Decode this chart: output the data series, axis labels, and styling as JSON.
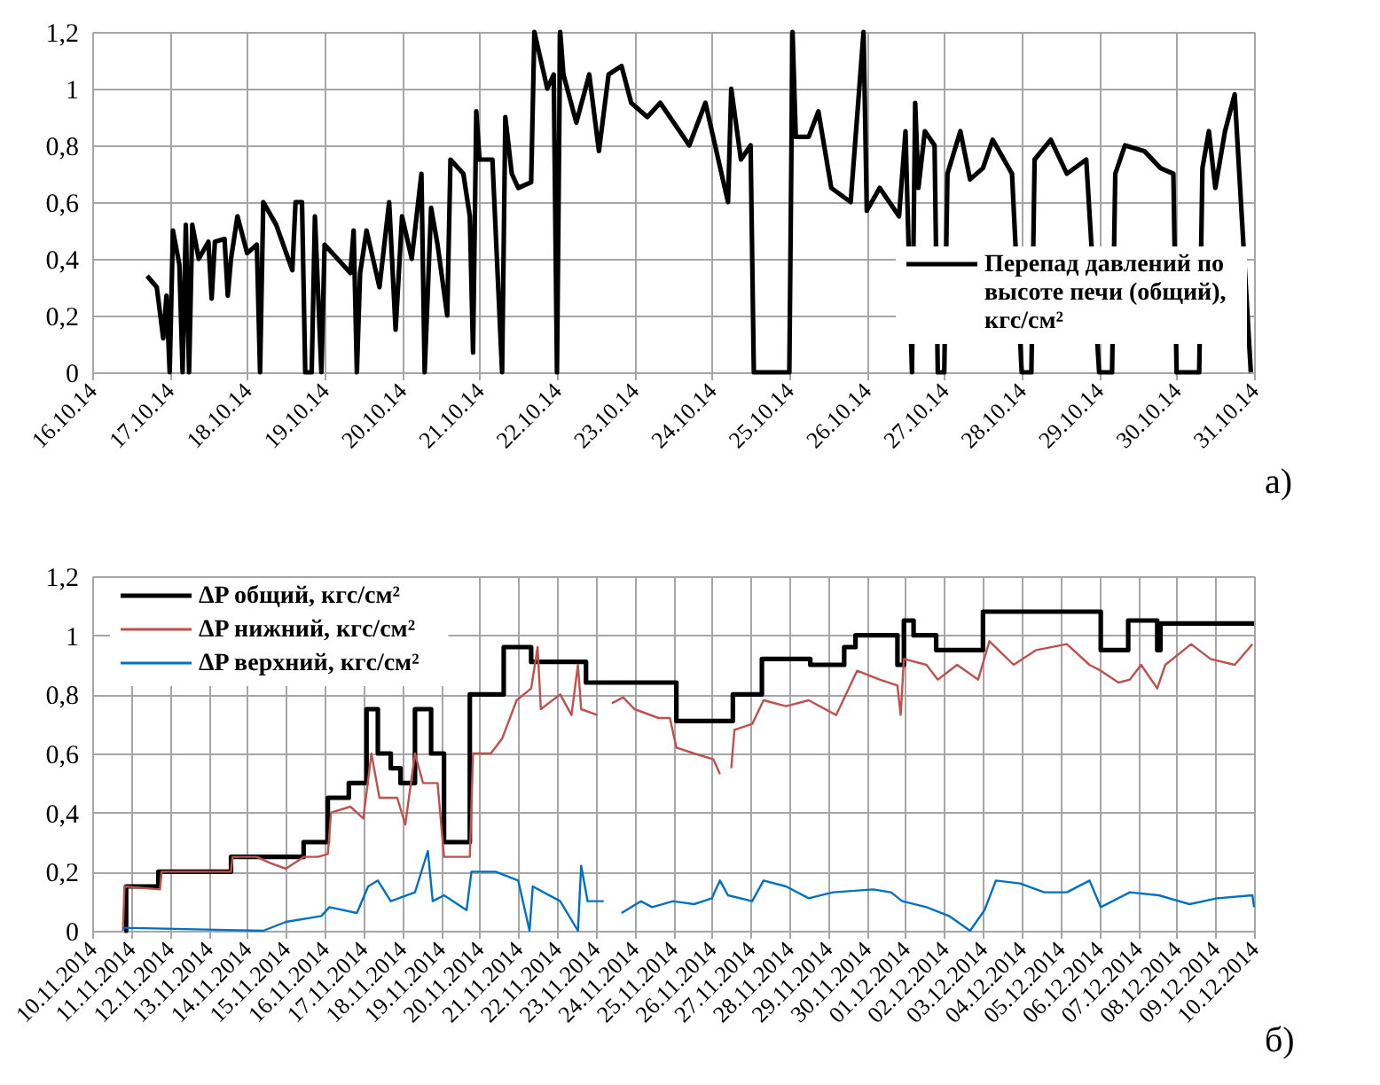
{
  "chart_data": [
    {
      "type": "line",
      "annotations": [
        "а)"
      ],
      "legend": "bottom right",
      "grid": true,
      "xlim": [
        "2014-10-16",
        "2014-10-31"
      ],
      "xticks": [
        {
          "value": "2014-10-16",
          "label": "16.10.14"
        },
        {
          "value": "2014-10-17",
          "label": "17.10.14"
        },
        {
          "value": "2014-10-18",
          "label": "18.10.14"
        },
        {
          "value": "2014-10-19",
          "label": "19.10.14"
        },
        {
          "value": "2014-10-20",
          "label": "20.10.14"
        },
        {
          "value": "2014-10-21",
          "label": "21.10.14"
        },
        {
          "value": "2014-10-22",
          "label": "22.10.14"
        },
        {
          "value": "2014-10-23",
          "label": "23.10.14"
        },
        {
          "value": "2014-10-24",
          "label": "24.10.14"
        },
        {
          "value": "2014-10-25",
          "label": "25.10.14"
        },
        {
          "value": "2014-10-26",
          "label": "26.10.14"
        },
        {
          "value": "2014-10-27",
          "label": "27.10.14"
        },
        {
          "value": "2014-10-28",
          "label": "28.10.14"
        },
        {
          "value": "2014-10-29",
          "label": "29.10.14"
        },
        {
          "value": "2014-10-30",
          "label": "30.10.14"
        },
        {
          "value": "2014-10-31",
          "label": "31.10.14"
        }
      ],
      "ylim": [
        0,
        1.2
      ],
      "yticks": [
        0,
        {
          "value": 0.2,
          "label": "0,2"
        },
        {
          "value": 0.4,
          "label": "0,4"
        },
        {
          "value": 0.6,
          "label": "0,6"
        },
        {
          "value": 0.8,
          "label": "0,8"
        },
        1,
        {
          "value": 1.2,
          "label": "1,2"
        }
      ],
      "series": [
        {
          "name": "Перепад давлений по высоте печи (общий), кгс/см²",
          "color": "#000000",
          "x": [
            "2014-10-16T17:00",
            "2014-10-16T20:00",
            "2014-10-16T22:00",
            "2014-10-16T23:00",
            "2014-10-17T00:00",
            "2014-10-17T01:00",
            "2014-10-17T03:00",
            "2014-10-17T04:00",
            "2014-10-17T05:00",
            "2014-10-17T06:00",
            "2014-10-17T07:00",
            "2014-10-17T09:00",
            "2014-10-17T12:00",
            "2014-10-17T13:00",
            "2014-10-17T14:00",
            "2014-10-17T17:00",
            "2014-10-17T18:00",
            "2014-10-17T19:00",
            "2014-10-17T21:00",
            "2014-10-18T00:00",
            "2014-10-18T03:00",
            "2014-10-18T04:00",
            "2014-10-18T05:00",
            "2014-10-18T09:00",
            "2014-10-18T14:00",
            "2014-10-18T15:00",
            "2014-10-18T17:00",
            "2014-10-18T18:00",
            "2014-10-18T20:00",
            "2014-10-18T21:00",
            "2014-10-18T23:00",
            "2014-10-19T00:00",
            "2014-10-19T04:00",
            "2014-10-19T08:00",
            "2014-10-19T09:00",
            "2014-10-19T10:00",
            "2014-10-19T11:00",
            "2014-10-19T13:00",
            "2014-10-19T17:00",
            "2014-10-19T20:00",
            "2014-10-19T22:00",
            "2014-10-20T00:00",
            "2014-10-20T03:00",
            "2014-10-20T06:00",
            "2014-10-20T07:00",
            "2014-10-20T09:00",
            "2014-10-20T11:00",
            "2014-10-20T14:00",
            "2014-10-20T15:00",
            "2014-10-20T19:00",
            "2014-10-20T21:00",
            "2014-10-20T22:00",
            "2014-10-20T23:00",
            "2014-10-21T00:00",
            "2014-10-21T04:00",
            "2014-10-21T07:00",
            "2014-10-21T08:00",
            "2014-10-21T10:00",
            "2014-10-21T12:00",
            "2014-10-21T16:00",
            "2014-10-21T17:00",
            "2014-10-21T21:00",
            "2014-10-21T23:00",
            "2014-10-22T00:00",
            "2014-10-22T01:00",
            "2014-10-22T02:00",
            "2014-10-22T06:00",
            "2014-10-22T10:00",
            "2014-10-22T13:00",
            "2014-10-22T16:00",
            "2014-10-22T20:00",
            "2014-10-22T23:00",
            "2014-10-23T04:00",
            "2014-10-23T08:00",
            "2014-10-23T17:00",
            "2014-10-23T22:00",
            "2014-10-24T05:00",
            "2014-10-24T06:00",
            "2014-10-24T09:00",
            "2014-10-24T12:00",
            "2014-10-24T13:00",
            "2014-10-25T00:00",
            "2014-10-25T01:00",
            "2014-10-25T02:00",
            "2014-10-25T06:00",
            "2014-10-25T09:00",
            "2014-10-25T13:00",
            "2014-10-25T19:00",
            "2014-10-25T23:00",
            "2014-10-26T00:00",
            "2014-10-26T04:00",
            "2014-10-26T10:00",
            "2014-10-26T12:00",
            "2014-10-26T14:00",
            "2014-10-26T15:00",
            "2014-10-26T16:00",
            "2014-10-26T18:00",
            "2014-10-26T21:00",
            "2014-10-26T22:00",
            "2014-10-27T00:00",
            "2014-10-27T01:00",
            "2014-10-27T05:00",
            "2014-10-27T08:00",
            "2014-10-27T12:00",
            "2014-10-27T15:00",
            "2014-10-27T21:00",
            "2014-10-28T00:00",
            "2014-10-28T03:00",
            "2014-10-28T04:00",
            "2014-10-28T09:00",
            "2014-10-28T14:00",
            "2014-10-28T20:00",
            "2014-10-29T00:00",
            "2014-10-29T04:00",
            "2014-10-29T05:00",
            "2014-10-29T08:00",
            "2014-10-29T14:00",
            "2014-10-29T19:00",
            "2014-10-29T23:00",
            "2014-10-30T00:00",
            "2014-10-30T07:00",
            "2014-10-30T08:00",
            "2014-10-30T10:00",
            "2014-10-30T12:00",
            "2014-10-30T15:00",
            "2014-10-30T18:00",
            "2014-10-30T23:00"
          ],
          "values": [
            0.34,
            0.3,
            0.12,
            0.27,
            0,
            0.5,
            0.38,
            0,
            0.52,
            0,
            0.52,
            0.4,
            0.46,
            0.26,
            0.46,
            0.47,
            0.27,
            0.4,
            0.55,
            0.42,
            0.45,
            0,
            0.6,
            0.52,
            0.36,
            0.6,
            0.6,
            0,
            0,
            0.55,
            0,
            0.45,
            0.4,
            0.35,
            0.5,
            0,
            0.35,
            0.5,
            0.3,
            0.6,
            0.15,
            0.55,
            0.4,
            0.7,
            0,
            0.58,
            0.45,
            0.2,
            0.75,
            0.7,
            0.55,
            0.07,
            0.92,
            0.75,
            0.75,
            0,
            0.9,
            0.7,
            0.65,
            0.67,
            1.2,
            1.0,
            1.05,
            0,
            1.2,
            1.05,
            0.88,
            1.05,
            0.78,
            1.05,
            1.08,
            0.95,
            0.9,
            0.95,
            0.8,
            0.95,
            0.6,
            1.0,
            0.75,
            0.8,
            0,
            0,
            1.2,
            0.83,
            0.83,
            0.92,
            0.65,
            0.6,
            1.2,
            0.57,
            0.65,
            0.55,
            0.85,
            0,
            0.95,
            0.65,
            0.85,
            0.8,
            0,
            0,
            0.7,
            0.85,
            0.68,
            0.72,
            0.82,
            0.7,
            0,
            0,
            0.75,
            0.82,
            0.7,
            0.75,
            0,
            0,
            0.7,
            0.8,
            0.78,
            0.72,
            0.7,
            0,
            0,
            0.72,
            0.85,
            0.65,
            0.85,
            0.98,
            0
          ]
        }
      ]
    },
    {
      "type": "line",
      "annotations": [
        "б)"
      ],
      "legend": "top left",
      "grid": true,
      "xlim": [
        "2014-11-10",
        "2014-12-10"
      ],
      "xticks": [
        {
          "value": "2014-11-10",
          "label": "10.11.2014"
        },
        {
          "value": "2014-11-11",
          "label": "11.11.2014"
        },
        {
          "value": "2014-11-12",
          "label": "12.11.2014"
        },
        {
          "value": "2014-11-13",
          "label": "13.11.2014"
        },
        {
          "value": "2014-11-14",
          "label": "14.11.2014"
        },
        {
          "value": "2014-11-15",
          "label": "15.11.2014"
        },
        {
          "value": "2014-11-16",
          "label": "16.11.2014"
        },
        {
          "value": "2014-11-17",
          "label": "17.11.2014"
        },
        {
          "value": "2014-11-18",
          "label": "18.11.2014"
        },
        {
          "value": "2014-11-19",
          "label": "19.11.2014"
        },
        {
          "value": "2014-11-20",
          "label": "20.11.2014"
        },
        {
          "value": "2014-11-21",
          "label": "21.11.2014"
        },
        {
          "value": "2014-11-22",
          "label": "22.11.2014"
        },
        {
          "value": "2014-11-23",
          "label": "23.11.2014"
        },
        {
          "value": "2014-11-24",
          "label": "24.11.2014"
        },
        {
          "value": "2014-11-25",
          "label": "25.11.2014"
        },
        {
          "value": "2014-11-26",
          "label": "26.11.2014"
        },
        {
          "value": "2014-11-27",
          "label": "27.11.2014"
        },
        {
          "value": "2014-11-28",
          "label": "28.11.2014"
        },
        {
          "value": "2014-11-29",
          "label": "29.11.2014"
        },
        {
          "value": "2014-11-30",
          "label": "30.11.2014"
        },
        {
          "value": "2014-12-01",
          "label": "01.12.2014"
        },
        {
          "value": "2014-12-02",
          "label": "02.12.2014"
        },
        {
          "value": "2014-12-03",
          "label": "03.12.2014"
        },
        {
          "value": "2014-12-04",
          "label": "04.12.2014"
        },
        {
          "value": "2014-12-05",
          "label": "05.12.2014"
        },
        {
          "value": "2014-12-06",
          "label": "06.12.2014"
        },
        {
          "value": "2014-12-07",
          "label": "07.12.2014"
        },
        {
          "value": "2014-12-08",
          "label": "08.12.2014"
        },
        {
          "value": "2014-12-09",
          "label": "09.12.2014"
        },
        {
          "value": "2014-12-10",
          "label": "10.12.2014"
        }
      ],
      "ylim": [
        0,
        1.2
      ],
      "yticks": [
        0,
        {
          "value": 0.2,
          "label": "0,2"
        },
        {
          "value": 0.4,
          "label": "0,4"
        },
        {
          "value": 0.6,
          "label": "0,6"
        },
        {
          "value": 0.8,
          "label": "0,8"
        },
        1,
        {
          "value": 1.2,
          "label": "1,2"
        }
      ],
      "series": [
        {
          "name": "ΔP общий, кгс/см²",
          "color": "#000000",
          "type": "step",
          "x": [
            "2014-11-10T20:00",
            "2014-11-10T21:00",
            "2014-11-11T17:00",
            "2014-11-13T14:00",
            "2014-11-15T11:00",
            "2014-11-16T02:00",
            "2014-11-16T15:00",
            "2014-11-17T02:00",
            "2014-11-17T09:00",
            "2014-11-17T17:00",
            "2014-11-17T23:00",
            "2014-11-18T08:00",
            "2014-11-18T18:00",
            "2014-11-19T02:00",
            "2014-11-19T18:00",
            "2014-11-20T15:00",
            "2014-11-21T08:00",
            "2014-11-22T18:00",
            "2014-11-25T02:00",
            "2014-11-26T13:00",
            "2014-11-27T07:00",
            "2014-11-28T13:00",
            "2014-11-29T10:00",
            "2014-11-29T17:00",
            "2014-11-30T19:00",
            "2014-11-30T23:00",
            "2014-12-01T05:00",
            "2014-12-01T19:00",
            "2014-12-03T00:00",
            "2014-12-06T01:00",
            "2014-12-06T18:00",
            "2014-12-07T12:00",
            "2014-12-07T14:00",
            "2014-12-10T00:00"
          ],
          "values": [
            0,
            0.15,
            0.2,
            0.25,
            0.3,
            0.45,
            0.5,
            0.75,
            0.6,
            0.55,
            0.5,
            0.75,
            0.6,
            0.3,
            0.8,
            0.96,
            0.91,
            0.84,
            0.71,
            0.8,
            0.92,
            0.9,
            0.96,
            1.0,
            0.9,
            1.05,
            1.0,
            0.95,
            1.08,
            0.95,
            1.05,
            0.95,
            1.04,
            1.04
          ]
        },
        {
          "name": "ΔP нижний, кгс/см²",
          "color": "#c0504d",
          "x": [
            "2014-11-10T19:00",
            "2014-11-10T20:00",
            "2014-11-11T18:00",
            "2014-11-11T19:00",
            "2014-11-13T14:00",
            "2014-11-13T15:00",
            "2014-11-14T06:00",
            "2014-11-14T14:00",
            "2014-11-15T00:00",
            "2014-11-15T11:00",
            "2014-11-15T20:00",
            "2014-11-16T02:00",
            "2014-11-16T04:00",
            "2014-11-16T16:00",
            "2014-11-17T00:00",
            "2014-11-17T05:00",
            "2014-11-17T10:00",
            "2014-11-17T21:00",
            "2014-11-18T02:00",
            "2014-11-18T08:00",
            "2014-11-18T13:00",
            "2014-11-18T22:00",
            "2014-11-19T02:00",
            "2014-11-19T18:00",
            "2014-11-19T20:00",
            "2014-11-20T07:00",
            "2014-11-20T14:00",
            "2014-11-20T23:00",
            "2014-11-21T08:00",
            "2014-11-21T12:00",
            "2014-11-21T14:00",
            "2014-11-22T02:00",
            "2014-11-22T09:00",
            "2014-11-22T13:00",
            "2014-11-22T15:00",
            "2014-11-23T01:00",
            "2014-11-23T05:00",
            "2014-11-23T10:00",
            "2014-11-23T17:00",
            "2014-11-24T00:00",
            "2014-11-24T15:00",
            "2014-11-24T22:00",
            "2014-11-25T02:00",
            "2014-11-25T13:00",
            "2014-11-26T01:00",
            "2014-11-26T05:00",
            "2014-11-26T08:00",
            "2014-11-26T12:00",
            "2014-11-26T14:00",
            "2014-11-27T01:00",
            "2014-11-27T08:00",
            "2014-11-27T22:00",
            "2014-11-28T12:00",
            "2014-11-29T05:00",
            "2014-11-29T18:00",
            "2014-11-30T08:00",
            "2014-11-30T19:00",
            "2014-11-30T21:00",
            "2014-11-30T23:00",
            "2014-12-01T13:00",
            "2014-12-01T20:00",
            "2014-12-02T08:00",
            "2014-12-02T21:00",
            "2014-12-03T04:00",
            "2014-12-03T19:00",
            "2014-12-04T09:00",
            "2014-12-05T04:00",
            "2014-12-05T18:00",
            "2014-12-06T01:00",
            "2014-12-06T12:00",
            "2014-12-06T19:00",
            "2014-12-07T02:00",
            "2014-12-07T12:00",
            "2014-12-07T17:00",
            "2014-12-08T09:00",
            "2014-12-08T21:00",
            "2014-12-09T12:00",
            "2014-12-09T23:00"
          ],
          "values": [
            0,
            0.15,
            0.14,
            0.2,
            0.2,
            0.25,
            0.25,
            0.23,
            0.21,
            0.25,
            0.25,
            0.26,
            0.4,
            0.42,
            0.38,
            0.6,
            0.45,
            0.45,
            0.36,
            0.6,
            0.5,
            0.5,
            0.25,
            0.25,
            0.6,
            0.6,
            0.65,
            0.78,
            0.82,
            0.96,
            0.75,
            0.8,
            0.73,
            0.9,
            0.75,
            0.73,
            null,
            0.77,
            0.79,
            0.75,
            0.72,
            0.72,
            0.62,
            0.6,
            0.58,
            0.53,
            null,
            0.55,
            0.68,
            0.7,
            0.78,
            0.76,
            0.78,
            0.73,
            0.88,
            0.85,
            0.83,
            0.73,
            0.92,
            0.9,
            0.85,
            0.9,
            0.85,
            0.98,
            0.9,
            0.95,
            0.97,
            0.9,
            0.88,
            0.84,
            0.85,
            0.9,
            0.82,
            0.9,
            0.97,
            0.92,
            0.9,
            0.97
          ]
        },
        {
          "name": "ΔP верхний, кгс/см²",
          "color": "#0070c0",
          "x": [
            "2014-11-10T19:00",
            "2014-11-14T10:00",
            "2014-11-15T00:00",
            "2014-11-15T22:00",
            "2014-11-16T03:00",
            "2014-11-16T20:00",
            "2014-11-17T03:00",
            "2014-11-17T09:00",
            "2014-11-17T17:00",
            "2014-11-18T08:00",
            "2014-11-18T16:00",
            "2014-11-18T19:00",
            "2014-11-19T02:00",
            "2014-11-19T16:00",
            "2014-11-19T19:00",
            "2014-11-20T10:00",
            "2014-11-21T00:00",
            "2014-11-21T07:00",
            "2014-11-21T09:00",
            "2014-11-22T02:00",
            "2014-11-22T13:00",
            "2014-11-22T15:00",
            "2014-11-22T19:00",
            "2014-11-23T05:00",
            "2014-11-23T10:00",
            "2014-11-23T16:00",
            "2014-11-24T04:00",
            "2014-11-24T11:00",
            "2014-11-25T00:00",
            "2014-11-25T13:00",
            "2014-11-26T00:00",
            "2014-11-26T05:00",
            "2014-11-26T10:00",
            "2014-11-27T01:00",
            "2014-11-27T08:00",
            "2014-11-27T22:00",
            "2014-11-28T12:00",
            "2014-11-29T03:00",
            "2014-11-30T04:00",
            "2014-11-30T15:00",
            "2014-11-30T22:00",
            "2014-12-01T13:00",
            "2014-12-02T03:00",
            "2014-12-02T16:00",
            "2014-12-03T01:00",
            "2014-12-03T08:00",
            "2014-12-03T23:00",
            "2014-12-04T14:00",
            "2014-12-05T04:00",
            "2014-12-05T18:00",
            "2014-12-06T01:00",
            "2014-12-06T19:00",
            "2014-12-07T13:00",
            "2014-12-08T08:00",
            "2014-12-09T01:00",
            "2014-12-09T23:00",
            "2014-12-10T00:00"
          ],
          "values": [
            0.01,
            0,
            0.03,
            0.05,
            0.08,
            0.06,
            0.15,
            0.17,
            0.1,
            0.13,
            0.27,
            0.1,
            0.12,
            0.07,
            0.2,
            0.2,
            0.17,
            0,
            0.15,
            0.1,
            0,
            0.22,
            0.1,
            0.1,
            null,
            0.06,
            0.1,
            0.08,
            0.1,
            0.09,
            0.11,
            0.17,
            0.12,
            0.1,
            0.17,
            0.15,
            0.11,
            0.13,
            0.14,
            0.13,
            0.1,
            0.08,
            0.05,
            0,
            0.07,
            0.17,
            0.16,
            0.13,
            0.13,
            0.17,
            0.08,
            0.13,
            0.12,
            0.09,
            0.11,
            0.12,
            0.08
          ]
        }
      ]
    }
  ]
}
